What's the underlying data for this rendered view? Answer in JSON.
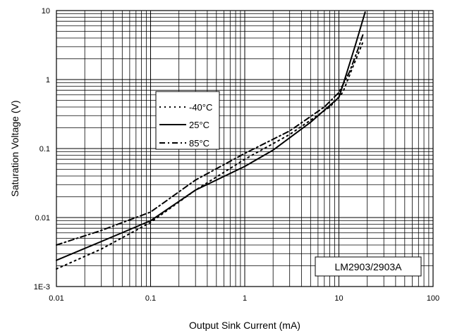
{
  "chart_data": {
    "type": "line",
    "xscale": "log",
    "yscale": "log",
    "xlim": [
      0.01,
      100
    ],
    "ylim": [
      0.001,
      10
    ],
    "grid": true,
    "xlabel": "Output Sink Current (mA)",
    "ylabel": "Saturation Voltage (V)",
    "xticks": [
      "0.01",
      "0.1",
      "1",
      "10",
      "100"
    ],
    "yticks": [
      "1E-3",
      "0.01",
      "0.1",
      "1",
      "10"
    ],
    "legend_position": "center-left",
    "annotation": "LM2903/2903A",
    "series": [
      {
        "name": "-40°C",
        "style": "dotted",
        "x": [
          0.01,
          0.03,
          0.1,
          0.3,
          1,
          3,
          8,
          11,
          14,
          18
        ],
        "y": [
          0.0018,
          0.0035,
          0.0085,
          0.025,
          0.07,
          0.16,
          0.4,
          0.65,
          1.5,
          3.5
        ]
      },
      {
        "name": "25°C",
        "style": "solid",
        "x": [
          0.01,
          0.03,
          0.1,
          0.3,
          1,
          2,
          5,
          10,
          12,
          15,
          19
        ],
        "y": [
          0.0024,
          0.0045,
          0.009,
          0.025,
          0.055,
          0.095,
          0.24,
          0.55,
          1.2,
          3.2,
          9.5
        ]
      },
      {
        "name": "85°C",
        "style": "dash-dot",
        "x": [
          0.01,
          0.03,
          0.1,
          0.3,
          1,
          3,
          7,
          10,
          13,
          16,
          18
        ],
        "y": [
          0.004,
          0.0065,
          0.012,
          0.035,
          0.085,
          0.18,
          0.4,
          0.65,
          1.3,
          2.8,
          4.5
        ]
      }
    ]
  }
}
